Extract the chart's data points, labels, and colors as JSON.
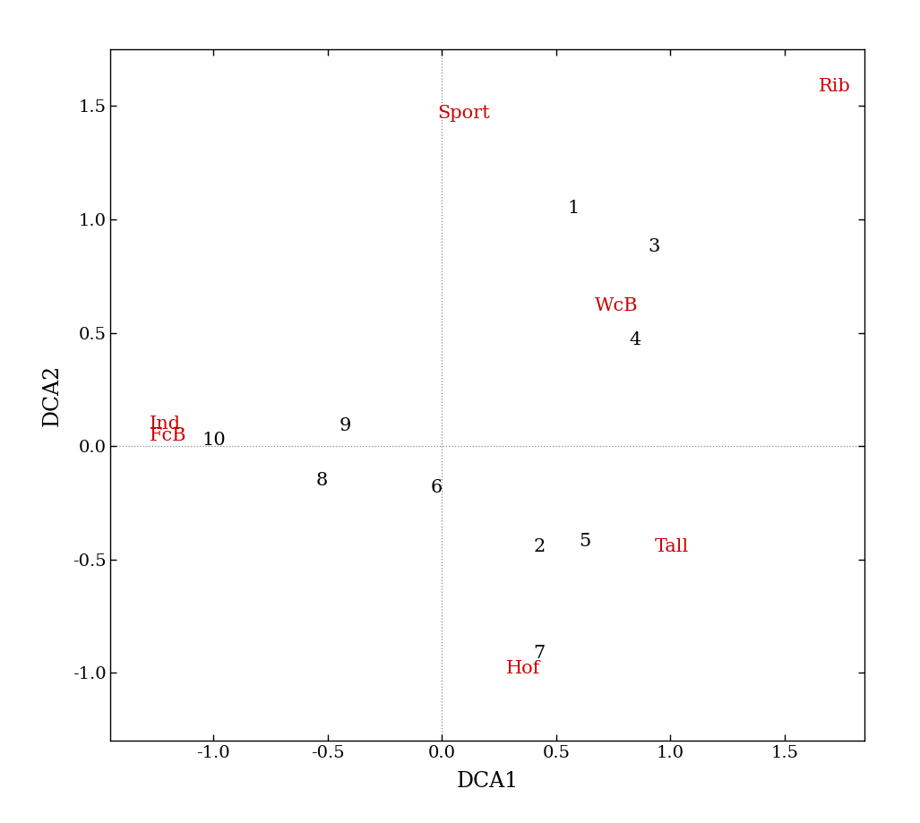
{
  "title": "",
  "xlabel": "DCA1",
  "ylabel": "DCA2",
  "xlim": [
    -1.45,
    1.85
  ],
  "ylim": [
    -1.3,
    1.75
  ],
  "xticks": [
    -1.0,
    -0.5,
    0.0,
    0.5,
    1.0,
    1.5
  ],
  "yticks": [
    -1.0,
    -0.5,
    0.0,
    0.5,
    1.0,
    1.5
  ],
  "row_points": {
    "1": [
      0.55,
      1.01
    ],
    "2": [
      0.4,
      -0.48
    ],
    "3": [
      0.9,
      0.84
    ],
    "4": [
      0.82,
      0.43
    ],
    "5": [
      0.6,
      -0.46
    ],
    "6": [
      -0.05,
      -0.22
    ],
    "7": [
      0.4,
      -0.95
    ],
    "8": [
      -0.55,
      -0.19
    ],
    "9": [
      -0.45,
      0.05
    ],
    "10": [
      -1.05,
      -0.01
    ]
  },
  "col_points": {
    "Sport": [
      -0.02,
      1.43
    ],
    "Rib": [
      1.65,
      1.55
    ],
    "WcB": [
      0.67,
      0.58
    ],
    "Tall": [
      0.93,
      -0.48
    ],
    "Ind": [
      -1.28,
      0.06
    ],
    "FcB": [
      -1.28,
      0.01
    ],
    "Hof": [
      0.28,
      -1.02
    ]
  },
  "row_color": "#000000",
  "col_color": "#cc0000",
  "background": "#ffffff",
  "fontsize_labels": 15,
  "fontsize_points": 15,
  "fontsize_axis_labels": 17,
  "fontsize_ticks": 14
}
